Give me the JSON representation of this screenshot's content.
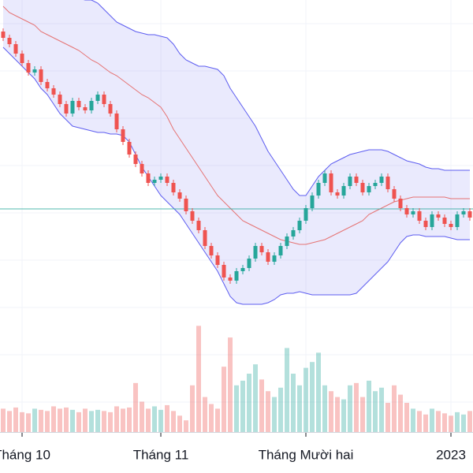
{
  "chart_data": {
    "type": "candlestick",
    "categories": [
      null,
      null,
      null,
      "Tháng 10",
      null,
      null,
      null,
      null,
      null,
      null,
      null,
      null,
      null,
      null,
      null,
      null,
      null,
      null,
      null,
      null,
      null,
      null,
      null,
      null,
      null,
      "Tháng 11",
      null,
      null,
      null,
      null,
      null,
      null,
      null,
      null,
      null,
      null,
      null,
      null,
      null,
      null,
      null,
      null,
      null,
      null,
      null,
      null,
      null,
      null,
      "Tháng Mười hai",
      null,
      null,
      null,
      null,
      null,
      null,
      null,
      null,
      null,
      null,
      null,
      null,
      null,
      null,
      null,
      null,
      null,
      null,
      null,
      null,
      null,
      null,
      "2023",
      null,
      null,
      null
    ],
    "open": [
      90,
      88,
      86,
      83,
      80,
      77,
      78,
      74,
      72,
      70,
      67,
      64,
      68,
      66,
      65,
      68,
      70,
      67,
      64,
      59,
      55,
      51,
      48,
      45,
      42,
      43,
      44,
      42,
      39,
      37,
      33,
      30,
      27,
      22,
      19,
      16,
      12,
      11,
      14,
      15,
      18,
      22,
      20,
      17,
      19,
      22,
      25,
      27,
      30,
      34,
      38,
      42,
      45,
      39,
      38,
      41,
      44,
      42,
      39,
      41,
      42,
      44,
      40,
      37,
      34,
      32,
      33,
      30,
      28,
      32,
      31,
      29,
      28,
      32,
      33
    ],
    "high": [
      91,
      89,
      87,
      84,
      81,
      79,
      79,
      75,
      73,
      71,
      68,
      69,
      69,
      67,
      69,
      71,
      71,
      68,
      65,
      60,
      56,
      52,
      49,
      46,
      44,
      45,
      45,
      43,
      40,
      38,
      34,
      31,
      28,
      23,
      20,
      17,
      13,
      15,
      16,
      19,
      23,
      23,
      21,
      20,
      23,
      26,
      28,
      31,
      35,
      39,
      43,
      46,
      46,
      40,
      42,
      45,
      45,
      43,
      42,
      43,
      45,
      45,
      41,
      38,
      35,
      34,
      34,
      31,
      33,
      33,
      32,
      30,
      33,
      34,
      34
    ],
    "low": [
      87,
      85,
      82,
      79,
      76,
      76,
      73,
      71,
      69,
      66,
      63,
      63,
      65,
      64,
      64,
      67,
      66,
      63,
      58,
      54,
      50,
      47,
      44,
      41,
      41,
      42,
      41,
      38,
      36,
      32,
      29,
      26,
      21,
      18,
      15,
      11,
      10,
      10,
      13,
      14,
      17,
      19,
      16,
      16,
      18,
      21,
      24,
      26,
      29,
      33,
      37,
      41,
      38,
      37,
      37,
      40,
      41,
      38,
      38,
      40,
      41,
      39,
      36,
      33,
      31,
      31,
      29,
      27,
      27,
      30,
      28,
      27,
      27,
      31,
      30
    ],
    "close": [
      88,
      86,
      83,
      80,
      77,
      78,
      74,
      72,
      70,
      67,
      64,
      68,
      66,
      65,
      68,
      70,
      67,
      64,
      59,
      55,
      51,
      48,
      45,
      42,
      43,
      44,
      42,
      39,
      37,
      33,
      30,
      27,
      22,
      19,
      16,
      12,
      11,
      14,
      15,
      18,
      22,
      20,
      17,
      19,
      22,
      25,
      27,
      30,
      34,
      38,
      42,
      45,
      39,
      38,
      41,
      44,
      42,
      39,
      41,
      42,
      44,
      40,
      37,
      34,
      32,
      33,
      30,
      28,
      32,
      31,
      29,
      28,
      32,
      33,
      31
    ],
    "volume": [
      20,
      18,
      21,
      17,
      16,
      20,
      19,
      18,
      22,
      20,
      21,
      19,
      17,
      20,
      18,
      19,
      18,
      17,
      22,
      20,
      21,
      42,
      26,
      20,
      22,
      19,
      23,
      18,
      14,
      10,
      40,
      91,
      30,
      24,
      20,
      56,
      81,
      40,
      44,
      50,
      58,
      45,
      35,
      30,
      38,
      72,
      50,
      40,
      55,
      60,
      68,
      40,
      35,
      30,
      28,
      40,
      42,
      30,
      44,
      35,
      38,
      25,
      40,
      32,
      25,
      20,
      18,
      15,
      20,
      18,
      16,
      14,
      17,
      15,
      18
    ],
    "bands": {
      "upper": [
        112,
        109,
        106,
        104,
        103,
        102,
        101.5,
        101,
        101,
        101,
        100.5,
        100.5,
        100.5,
        100,
        100,
        99,
        97,
        95,
        93,
        92,
        91,
        90,
        89.5,
        89,
        89,
        88.5,
        88,
        86,
        83,
        81,
        80,
        79,
        79,
        78.5,
        78,
        76,
        72,
        69,
        66,
        63,
        60,
        56,
        52,
        49,
        46,
        43,
        40,
        38,
        38,
        41,
        44,
        46,
        48,
        49,
        50,
        51,
        51.5,
        52,
        52.5,
        52.5,
        52.5,
        52,
        51,
        50,
        49,
        48.5,
        48,
        47,
        46.5,
        46.5,
        46,
        46,
        46,
        46,
        46
      ],
      "middle": [
        98,
        96,
        95,
        94,
        93,
        92,
        90,
        89,
        88,
        87,
        86,
        85,
        84,
        82.5,
        81,
        80,
        78.5,
        77,
        76,
        74.5,
        73,
        71.5,
        70,
        69,
        67.5,
        66,
        63,
        59,
        56,
        53,
        50,
        47,
        44,
        41,
        38,
        36,
        34,
        32,
        30,
        29,
        28,
        27,
        26,
        25,
        24,
        23.5,
        23,
        22.5,
        22.5,
        23,
        23.5,
        24,
        25,
        26,
        27,
        28,
        29,
        30,
        32,
        33,
        34,
        35,
        36,
        36.5,
        37,
        37.5,
        37.5,
        37.5,
        37.5,
        37.5,
        37.5,
        37,
        37,
        37,
        37
      ],
      "lower": [
        85,
        83,
        81,
        79,
        77,
        75,
        72,
        70,
        67,
        64,
        62,
        60,
        59.5,
        59,
        58.5,
        58,
        58,
        57.5,
        57.5,
        57,
        55,
        51,
        47,
        44,
        41,
        38,
        36,
        34,
        32,
        29,
        26,
        23,
        20,
        17,
        14,
        10,
        6,
        4,
        3.5,
        3.5,
        3.5,
        3.5,
        4,
        5,
        6.5,
        7,
        7,
        7.5,
        7,
        6.5,
        6.5,
        6.5,
        6.5,
        6.5,
        6.5,
        6.5,
        7,
        9,
        11,
        13,
        15,
        17,
        20,
        23,
        25,
        25.5,
        25.5,
        25,
        25,
        25,
        25,
        24.5,
        24,
        24,
        24
      ]
    },
    "price_line": 33.75,
    "ylim": [
      0,
      100
    ],
    "volume_ylim": [
      0,
      100
    ],
    "up_color": "#26a69a",
    "down_color": "#ef5350",
    "band_color": "#5c5cf0",
    "middle_color": "#e57373",
    "grid": true
  }
}
